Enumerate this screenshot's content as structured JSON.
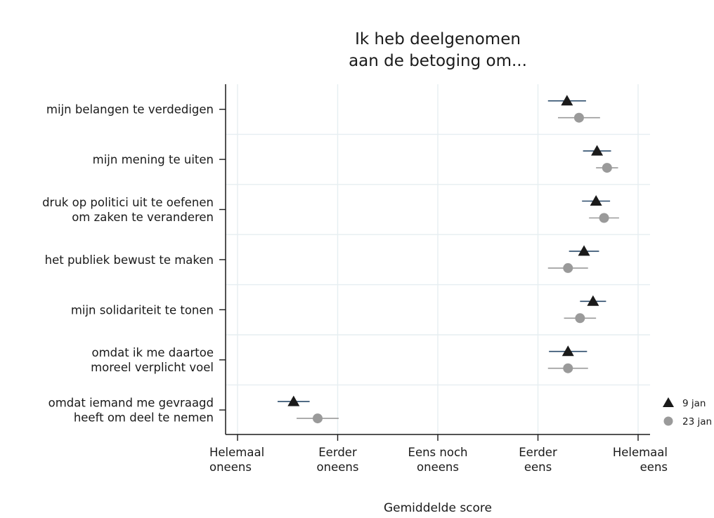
{
  "chart_data": {
    "type": "scatter",
    "title": "Ik heb deelgenomen\naan de betoging om...",
    "xlabel": "Gemiddelde score",
    "xlim": [
      1,
      5
    ],
    "xticks": [
      {
        "value": 1,
        "label": "Helemaal\noneens"
      },
      {
        "value": 2,
        "label": "Eerder\noneens"
      },
      {
        "value": 3,
        "label": "Eens noch\noneens"
      },
      {
        "value": 4,
        "label": "Eerder\neens"
      },
      {
        "value": 5,
        "label": "Helemaal\neens"
      }
    ],
    "categories": [
      "mijn belangen te verdedigen",
      "mijn mening te uiten",
      "druk op politici uit te oefenen\nom zaken te veranderen",
      "het publiek bewust te maken",
      "mijn solidariteit te tonen",
      "omdat ik me daartoe\nmoreel verplicht voel",
      "omdat iemand me gevraagd\nheeft om deel te nemen"
    ],
    "series": [
      {
        "name": "9 jan",
        "marker": "triangle",
        "color": "#1a1a1a",
        "ci_color": "#2a4a6a",
        "values": [
          4.29,
          4.59,
          4.58,
          4.46,
          4.55,
          4.3,
          1.56
        ],
        "ci_low": [
          4.1,
          4.45,
          4.44,
          4.31,
          4.42,
          4.11,
          1.4
        ],
        "ci_high": [
          4.48,
          4.73,
          4.72,
          4.61,
          4.68,
          4.49,
          1.72
        ]
      },
      {
        "name": "23 jan",
        "marker": "circle",
        "color": "#9a9a9a",
        "ci_color": "#9a9a9a",
        "values": [
          4.41,
          4.69,
          4.66,
          4.3,
          4.42,
          4.3,
          1.8
        ],
        "ci_low": [
          4.2,
          4.58,
          4.51,
          4.1,
          4.26,
          4.1,
          1.59
        ],
        "ci_high": [
          4.62,
          4.8,
          4.81,
          4.5,
          4.58,
          4.5,
          2.01
        ]
      }
    ],
    "legend": "right",
    "grid": true
  }
}
